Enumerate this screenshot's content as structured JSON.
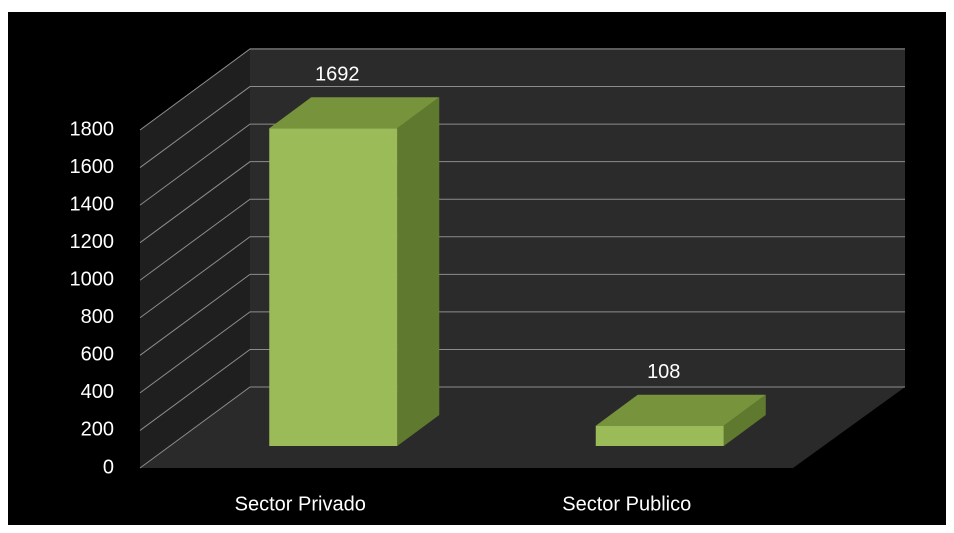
{
  "chart_data": {
    "type": "bar3d",
    "categories": [
      "Sector Privado",
      "Sector Publico"
    ],
    "values": [
      1692,
      108
    ],
    "color": "#9bbb59",
    "ylim": [
      0,
      1800
    ],
    "yticks": [
      0,
      200,
      400,
      600,
      800,
      1000,
      1200,
      1400,
      1600,
      1800
    ],
    "grid": true
  }
}
